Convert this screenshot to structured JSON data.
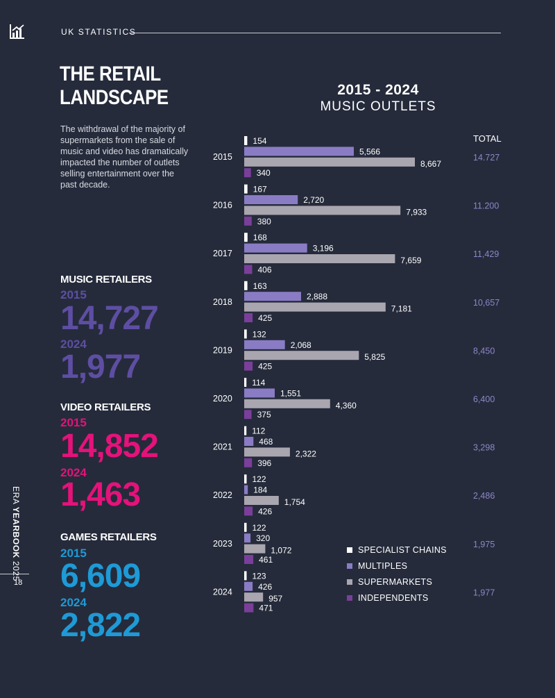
{
  "header": {
    "section_label": "UK STATISTICS"
  },
  "title": {
    "line1": "THE RETAIL",
    "line2": "LANDSCAPE"
  },
  "intro": "The withdrawal of the majority of supermarkets from the sale of music and video has dramatically impacted the number of outlets selling entertainment over the past decade.",
  "stats": {
    "music": {
      "heading": "MUSIC RETAILERS",
      "year_a": "2015",
      "value_a": "14,727",
      "year_b": "2024",
      "value_b": "1,977",
      "color": "#5e4ea3"
    },
    "video": {
      "heading": "VIDEO RETAILERS",
      "year_a": "2015",
      "value_a": "14,852",
      "year_b": "2024",
      "value_b": "1,463",
      "color": "#e5127a"
    },
    "games": {
      "heading": "GAMES RETAILERS",
      "year_a": "2015",
      "value_a": "6,609",
      "year_b": "2024",
      "value_b": "2,822",
      "color": "#1e9ad6"
    }
  },
  "side": {
    "prefix": "ERA ",
    "bold": "YEARBOOK",
    "suffix": " 2025"
  },
  "page_number": "18",
  "colors": {
    "specialist": "#ffffff",
    "multiples": "#8a7cc4",
    "supermarkets": "#a9a6af",
    "independents": "#7a3f9a"
  },
  "chart_data": {
    "type": "bar",
    "orientation": "horizontal",
    "title": "2015 - 2024",
    "subtitle": "MUSIC OUTLETS",
    "total_label": "TOTAL",
    "categories": [
      "2015",
      "2016",
      "2017",
      "2018",
      "2019",
      "2020",
      "2021",
      "2022",
      "2023",
      "2024"
    ],
    "series": [
      {
        "name": "SPECIALIST CHAINS",
        "key": "specialist",
        "values": [
          154,
          167,
          168,
          163,
          132,
          114,
          112,
          122,
          122,
          123
        ],
        "labels": [
          "154",
          "167",
          "168",
          "163",
          "132",
          "114",
          "112",
          "122",
          "122",
          "123"
        ]
      },
      {
        "name": "MULTIPLES",
        "key": "multiples",
        "values": [
          5566,
          2720,
          3196,
          2888,
          2068,
          1551,
          468,
          184,
          320,
          426
        ],
        "labels": [
          "5,566",
          "2,720",
          "3,196",
          "2,888",
          "2,068",
          "1,551",
          "468",
          "184",
          "320",
          "426"
        ]
      },
      {
        "name": "SUPERMARKETS",
        "key": "supermarkets",
        "values": [
          8667,
          7933,
          7659,
          7181,
          5825,
          4360,
          2322,
          1754,
          1072,
          957
        ],
        "labels": [
          "8,667",
          "7,933",
          "7,659",
          "7,181",
          "5,825",
          "4,360",
          "2,322",
          "1,754",
          "1,072",
          "957"
        ]
      },
      {
        "name": "INDEPENDENTS",
        "key": "independents",
        "values": [
          340,
          380,
          406,
          425,
          425,
          375,
          396,
          426,
          461,
          471
        ],
        "labels": [
          "340",
          "380",
          "406",
          "425",
          "425",
          "375",
          "396",
          "426",
          "461",
          "471"
        ]
      }
    ],
    "totals": [
      "14.727",
      "11.200",
      "11,429",
      "10,657",
      "8,450",
      "6,400",
      "3,298",
      "2,486",
      "1,975",
      "1,977"
    ],
    "xlim": [
      0,
      8667
    ],
    "legend_position": "bottom-right"
  }
}
